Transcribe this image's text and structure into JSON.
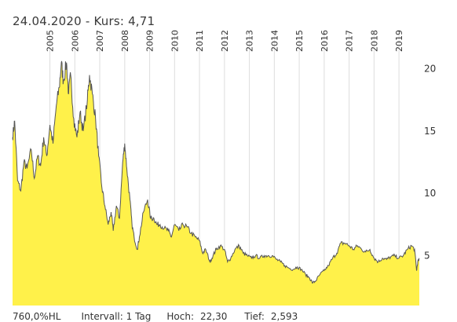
{
  "header": {
    "date": "24.04.2020",
    "separator": "-",
    "kurs_label": "Kurs:",
    "kurs_value": "4,71"
  },
  "footer": {
    "scale": "760,0%HL",
    "interval": "Intervall: 1 Tag",
    "hoch_label": "Hoch:",
    "hoch_value": "22,30",
    "tief_label": "Tief:",
    "tief_value": "2,593"
  },
  "colors": {
    "fill": "#fff14a",
    "line": "#555555",
    "grid": "#dddddd"
  },
  "chart_data": {
    "type": "area",
    "title": "",
    "xlabel": "",
    "ylabel": "",
    "x_start": "2004-01-01",
    "x_end": "2020-04-24",
    "ylim": [
      1,
      23
    ],
    "yticks": [
      5,
      10,
      15,
      20
    ],
    "ytick_labels": [
      "5",
      "10",
      "15",
      "20"
    ],
    "years": [
      "2005",
      "2006",
      "2007",
      "2008",
      "2009",
      "2010",
      "2011",
      "2012",
      "2013",
      "2014",
      "2015",
      "2016",
      "2017",
      "2018",
      "2019"
    ],
    "grid": true,
    "points": [
      [
        "2004-01-01",
        14.5
      ],
      [
        "2004-02-01",
        15.8
      ],
      [
        "2004-03-15",
        11.0
      ],
      [
        "2004-05-01",
        10.2
      ],
      [
        "2004-06-15",
        12.5
      ],
      [
        "2004-08-01",
        12.0
      ],
      [
        "2004-10-01",
        13.5
      ],
      [
        "2004-11-15",
        11.2
      ],
      [
        "2005-01-01",
        13.0
      ],
      [
        "2005-02-15",
        12.2
      ],
      [
        "2005-04-01",
        14.5
      ],
      [
        "2005-05-15",
        13.0
      ],
      [
        "2005-07-01",
        15.5
      ],
      [
        "2005-08-15",
        14.0
      ],
      [
        "2005-10-01",
        17.0
      ],
      [
        "2005-11-15",
        18.5
      ],
      [
        "2005-12-15",
        20.5
      ],
      [
        "2006-01-15",
        19.0
      ],
      [
        "2006-03-01",
        20.5
      ],
      [
        "2006-04-01",
        18.0
      ],
      [
        "2006-05-01",
        19.5
      ],
      [
        "2006-06-15",
        16.0
      ],
      [
        "2006-08-01",
        14.5
      ],
      [
        "2006-09-15",
        16.5
      ],
      [
        "2006-11-01",
        15.0
      ],
      [
        "2007-01-01",
        17.5
      ],
      [
        "2007-02-01",
        19.5
      ],
      [
        "2007-03-15",
        18.0
      ],
      [
        "2007-05-01",
        16.0
      ],
      [
        "2007-06-15",
        13.0
      ],
      [
        "2007-08-01",
        10.5
      ],
      [
        "2007-09-15",
        9.0
      ],
      [
        "2007-11-01",
        7.5
      ],
      [
        "2007-12-15",
        8.5
      ],
      [
        "2008-01-15",
        7.0
      ],
      [
        "2008-03-01",
        9.0
      ],
      [
        "2008-04-15",
        8.0
      ],
      [
        "2008-06-01",
        12.5
      ],
      [
        "2008-07-01",
        14.0
      ],
      [
        "2008-08-01",
        12.0
      ],
      [
        "2008-09-15",
        9.5
      ],
      [
        "2008-10-15",
        7.5
      ],
      [
        "2008-11-15",
        6.5
      ],
      [
        "2009-01-01",
        5.5
      ],
      [
        "2009-02-01",
        6.5
      ],
      [
        "2009-04-01",
        8.5
      ],
      [
        "2009-06-01",
        9.5
      ],
      [
        "2009-07-15",
        8.0
      ],
      [
        "2009-09-01",
        8.0
      ],
      [
        "2009-10-15",
        7.5
      ],
      [
        "2009-12-01",
        7.5
      ],
      [
        "2010-02-01",
        7.2
      ],
      [
        "2010-04-01",
        7.0
      ],
      [
        "2010-05-15",
        6.5
      ],
      [
        "2010-07-01",
        7.5
      ],
      [
        "2010-09-01",
        7.0
      ],
      [
        "2010-11-01",
        7.5
      ],
      [
        "2011-01-01",
        7.3
      ],
      [
        "2011-03-01",
        6.8
      ],
      [
        "2011-05-01",
        6.5
      ],
      [
        "2011-07-01",
        6.2
      ],
      [
        "2011-08-15",
        5.2
      ],
      [
        "2011-10-01",
        5.5
      ],
      [
        "2011-12-01",
        4.5
      ],
      [
        "2012-01-15",
        5.0
      ],
      [
        "2012-03-01",
        5.5
      ],
      [
        "2012-05-01",
        5.8
      ],
      [
        "2012-07-01",
        5.5
      ],
      [
        "2012-08-15",
        4.5
      ],
      [
        "2012-10-01",
        4.8
      ],
      [
        "2012-12-01",
        5.5
      ],
      [
        "2013-02-01",
        5.8
      ],
      [
        "2013-04-01",
        5.2
      ],
      [
        "2013-06-01",
        5.0
      ],
      [
        "2013-08-01",
        4.8
      ],
      [
        "2013-10-01",
        5.0
      ],
      [
        "2013-12-01",
        4.8
      ],
      [
        "2014-02-01",
        5.0
      ],
      [
        "2014-04-01",
        5.0
      ],
      [
        "2014-06-01",
        5.0
      ],
      [
        "2014-08-01",
        4.7
      ],
      [
        "2014-10-01",
        4.5
      ],
      [
        "2014-12-01",
        4.2
      ],
      [
        "2015-02-01",
        4.0
      ],
      [
        "2015-04-01",
        3.9
      ],
      [
        "2015-06-01",
        4.1
      ],
      [
        "2015-08-01",
        3.9
      ],
      [
        "2015-10-01",
        3.5
      ],
      [
        "2015-12-01",
        3.2
      ],
      [
        "2016-01-15",
        2.8
      ],
      [
        "2016-03-01",
        3.0
      ],
      [
        "2016-05-01",
        3.5
      ],
      [
        "2016-07-01",
        3.8
      ],
      [
        "2016-09-01",
        4.2
      ],
      [
        "2016-11-01",
        4.8
      ],
      [
        "2017-01-01",
        5.2
      ],
      [
        "2017-03-01",
        6.0
      ],
      [
        "2017-05-01",
        6.0
      ],
      [
        "2017-07-01",
        5.8
      ],
      [
        "2017-09-01",
        5.5
      ],
      [
        "2017-11-01",
        5.8
      ],
      [
        "2018-01-01",
        5.5
      ],
      [
        "2018-03-01",
        5.3
      ],
      [
        "2018-05-01",
        5.5
      ],
      [
        "2018-07-01",
        4.8
      ],
      [
        "2018-09-01",
        4.5
      ],
      [
        "2018-11-01",
        4.8
      ],
      [
        "2019-01-01",
        4.7
      ],
      [
        "2019-03-01",
        4.9
      ],
      [
        "2019-05-01",
        5.0
      ],
      [
        "2019-07-01",
        4.8
      ],
      [
        "2019-09-01",
        5.0
      ],
      [
        "2019-11-01",
        5.5
      ],
      [
        "2020-01-01",
        5.8
      ],
      [
        "2020-02-15",
        5.5
      ],
      [
        "2020-03-15",
        3.8
      ],
      [
        "2020-04-01",
        4.5
      ],
      [
        "2020-04-24",
        4.71
      ]
    ]
  }
}
